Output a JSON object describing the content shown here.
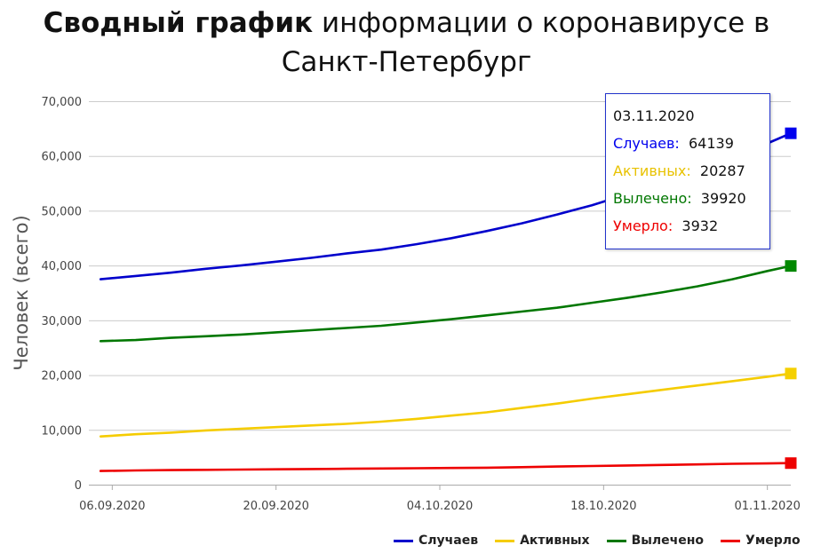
{
  "title": {
    "bold": "Сводный график",
    "rest": " информации о коронавирусе в Санкт-Петербург"
  },
  "chart_data": {
    "type": "line",
    "ylabel": "Человек (всего)",
    "ylim": [
      0,
      70000
    ],
    "yticks": [
      0,
      10000,
      20000,
      30000,
      40000,
      50000,
      60000,
      70000
    ],
    "ytick_labels": [
      "0",
      "10,000",
      "20,000",
      "30,000",
      "40,000",
      "50,000",
      "60,000",
      "70,000"
    ],
    "xlim": [
      "2020-09-04",
      "2020-11-03"
    ],
    "xticks": [
      "2020-09-06",
      "2020-09-20",
      "2020-10-04",
      "2020-10-18",
      "2020-11-01"
    ],
    "xtick_labels": [
      "06.09.2020",
      "20.09.2020",
      "04.10.2020",
      "18.10.2020",
      "01.11.2020"
    ],
    "grid": "horizontal",
    "legend_position": "bottom-right",
    "x": [
      "2020-09-05",
      "2020-09-08",
      "2020-09-11",
      "2020-09-14",
      "2020-09-17",
      "2020-09-20",
      "2020-09-23",
      "2020-09-26",
      "2020-09-29",
      "2020-10-02",
      "2020-10-05",
      "2020-10-08",
      "2020-10-11",
      "2020-10-14",
      "2020-10-17",
      "2020-10-20",
      "2020-10-23",
      "2020-10-26",
      "2020-10-29",
      "2020-11-01",
      "2020-11-03"
    ],
    "series": [
      {
        "name": "Случаев",
        "color": "#0000cc",
        "marker_color": "#0000ee",
        "values": [
          37500,
          38100,
          38700,
          39400,
          40000,
          40700,
          41400,
          42200,
          42900,
          43900,
          45000,
          46300,
          47700,
          49300,
          51000,
          53000,
          55000,
          57300,
          59600,
          62300,
          64139
        ]
      },
      {
        "name": "Активных",
        "color": "#f5cc00",
        "marker_color": "#f5d000",
        "values": [
          8800,
          9200,
          9500,
          9900,
          10200,
          10500,
          10800,
          11100,
          11500,
          12000,
          12600,
          13200,
          14000,
          14800,
          15700,
          16500,
          17300,
          18100,
          18900,
          19700,
          20287
        ]
      },
      {
        "name": "Вылечено",
        "color": "#007700",
        "marker_color": "#008800",
        "values": [
          26200,
          26400,
          26800,
          27100,
          27400,
          27800,
          28200,
          28600,
          29000,
          29600,
          30200,
          30900,
          31600,
          32300,
          33200,
          34100,
          35100,
          36200,
          37500,
          39000,
          39920
        ]
      },
      {
        "name": "Умерло",
        "color": "#ee0000",
        "marker_color": "#ee0000",
        "values": [
          2500,
          2600,
          2650,
          2700,
          2750,
          2800,
          2850,
          2900,
          2950,
          3000,
          3050,
          3100,
          3200,
          3300,
          3400,
          3500,
          3600,
          3700,
          3800,
          3880,
          3932
        ]
      }
    ],
    "tooltip": {
      "date": "03.11.2020",
      "rows": [
        {
          "label": "Случаев:",
          "value": "64139",
          "color": "#0000ee"
        },
        {
          "label": "Активных:",
          "value": "20287",
          "color": "#e8c200"
        },
        {
          "label": "Вылечено:",
          "value": "39920",
          "color": "#007700"
        },
        {
          "label": "Умерло:",
          "value": "3932",
          "color": "#ee0000"
        }
      ]
    }
  }
}
